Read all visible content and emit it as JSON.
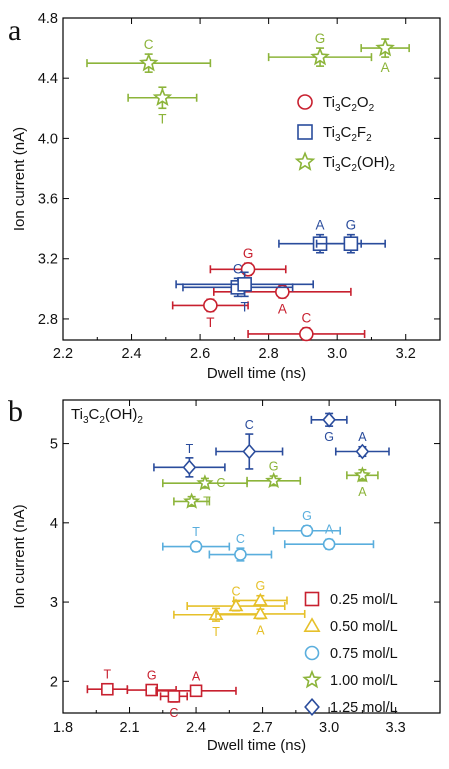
{
  "chart_data": [
    {
      "panel": "a",
      "type": "scatter",
      "xlabel": "Dwell time (ns)",
      "ylabel": "Ion current (nA)",
      "xlim": [
        2.2,
        3.3
      ],
      "ylim": [
        2.66,
        4.8
      ],
      "xticks": [
        "2.2",
        "2.4",
        "2.6",
        "2.8",
        "3.0",
        "3.2"
      ],
      "yticks": [
        "2.8",
        "3.2",
        "3.6",
        "4.0",
        "4.4",
        "4.8"
      ],
      "legend": {
        "placement": "right",
        "entries": [
          {
            "marker": "circle",
            "color": "#c8202f",
            "parts": [
              [
                "Ti",
                ""
              ],
              [
                "3",
                "sub"
              ],
              [
                "C",
                ""
              ],
              [
                "2",
                "sub"
              ],
              [
                "O",
                ""
              ],
              [
                "2",
                "sub"
              ]
            ]
          },
          {
            "marker": "square",
            "color": "#2a4c9c",
            "parts": [
              [
                "Ti",
                ""
              ],
              [
                "3",
                "sub"
              ],
              [
                "C",
                ""
              ],
              [
                "2",
                "sub"
              ],
              [
                "F",
                ""
              ],
              [
                "2",
                "sub"
              ]
            ]
          },
          {
            "marker": "star",
            "color": "#8cb43a",
            "parts": [
              [
                "Ti",
                ""
              ],
              [
                "3",
                "sub"
              ],
              [
                "C",
                ""
              ],
              [
                "2",
                "sub"
              ],
              [
                "(OH)",
                ""
              ],
              [
                "2",
                "sub"
              ]
            ]
          }
        ]
      },
      "series": [
        {
          "marker": "circle",
          "color": "#c8202f",
          "points": [
            {
              "label": "G",
              "lpos": "above",
              "x": 2.74,
              "y": 3.13,
              "xerr": 0.11,
              "yerr": 0.04
            },
            {
              "label": "T",
              "lpos": "below",
              "x": 2.63,
              "y": 2.89,
              "xerr": 0.11,
              "yerr": 0.04
            },
            {
              "label": "A",
              "lpos": "below",
              "x": 2.84,
              "y": 2.98,
              "xerr": 0.2,
              "yerr": 0.04
            },
            {
              "label": "C",
              "lpos": "above",
              "x": 2.91,
              "y": 2.7,
              "xerr": 0.17,
              "yerr": 0.04
            }
          ]
        },
        {
          "marker": "square",
          "color": "#2a4c9c",
          "points": [
            {
              "label": "C",
              "lpos": "above",
              "x": 2.71,
              "y": 3.01,
              "xerr": 0.16,
              "yerr": 0.06
            },
            {
              "label": "T",
              "lpos": "below",
              "x": 2.73,
              "y": 3.03,
              "xerr": 0.2,
              "yerr": 0.08
            },
            {
              "label": "A",
              "lpos": "above",
              "x": 2.95,
              "y": 3.3,
              "xerr": 0.12,
              "yerr": 0.06
            },
            {
              "label": "G",
              "lpos": "above",
              "x": 3.04,
              "y": 3.3,
              "xerr": 0.1,
              "yerr": 0.06
            }
          ]
        },
        {
          "marker": "star",
          "color": "#8cb43a",
          "points": [
            {
              "label": "C",
              "lpos": "above",
              "x": 2.45,
              "y": 4.5,
              "xerr": 0.18,
              "yerr": 0.06
            },
            {
              "label": "T",
              "lpos": "below",
              "x": 2.49,
              "y": 4.27,
              "xerr": 0.1,
              "yerr": 0.07
            },
            {
              "label": "G",
              "lpos": "above",
              "x": 2.95,
              "y": 4.54,
              "xerr": 0.15,
              "yerr": 0.06
            },
            {
              "label": "A",
              "lpos": "below",
              "x": 3.14,
              "y": 4.6,
              "xerr": 0.07,
              "yerr": 0.06
            }
          ]
        }
      ]
    },
    {
      "panel": "b",
      "type": "scatter",
      "xlabel": "Dwell time (ns)",
      "ylabel": "Ion current (nA)",
      "xlim": [
        1.8,
        3.5
      ],
      "ylim": [
        1.6,
        5.55
      ],
      "xticks": [
        "1.8",
        "2.1",
        "2.4",
        "2.7",
        "3.0",
        "3.3"
      ],
      "yticks": [
        "2",
        "3",
        "4",
        "5"
      ],
      "title_parts": [
        [
          "Ti",
          ""
        ],
        [
          "3",
          "sub"
        ],
        [
          "C",
          ""
        ],
        [
          "2",
          "sub"
        ],
        [
          "(OH)",
          ""
        ],
        [
          "2",
          "sub"
        ]
      ],
      "legend": {
        "placement": "lower-right",
        "entries": [
          {
            "marker": "square",
            "color": "#c8202f",
            "text": "0.25 mol/L"
          },
          {
            "marker": "triangle",
            "color": "#e6c02a",
            "text": "0.50 mol/L"
          },
          {
            "marker": "circle",
            "color": "#5aaedd",
            "text": "0.75 mol/L"
          },
          {
            "marker": "star",
            "color": "#8cb43a",
            "text": "1.00 mol/L"
          },
          {
            "marker": "diamond",
            "color": "#2a4c9c",
            "text": "1.25 mol/L"
          }
        ]
      },
      "series": [
        {
          "name": "0.25 mol/L",
          "marker": "square",
          "color": "#c8202f",
          "points": [
            {
              "label": "T",
              "lpos": "above",
              "x": 2.0,
              "y": 1.9,
              "xerr": 0.09,
              "yerr": 0.05
            },
            {
              "label": "G",
              "lpos": "above",
              "x": 2.2,
              "y": 1.89,
              "xerr": 0.11,
              "yerr": 0.05
            },
            {
              "label": "C",
              "lpos": "below",
              "x": 2.3,
              "y": 1.81,
              "xerr": 0.06,
              "yerr": 0.07
            },
            {
              "label": "A",
              "lpos": "above",
              "x": 2.4,
              "y": 1.88,
              "xerr": 0.18,
              "yerr": 0.05
            }
          ]
        },
        {
          "name": "0.50 mol/L",
          "marker": "triangle",
          "color": "#e6c02a",
          "points": [
            {
              "label": "T",
              "lpos": "below",
              "x": 2.49,
              "y": 2.84,
              "xerr": 0.19,
              "yerr": 0.08
            },
            {
              "label": "C",
              "lpos": "above",
              "x": 2.58,
              "y": 2.95,
              "xerr": 0.22,
              "yerr": 0.06
            },
            {
              "label": "G",
              "lpos": "above",
              "x": 2.69,
              "y": 3.02,
              "xerr": 0.12,
              "yerr": 0.06
            },
            {
              "label": "A",
              "lpos": "below",
              "x": 2.69,
              "y": 2.85,
              "xerr": 0.2,
              "yerr": 0.06
            }
          ]
        },
        {
          "name": "0.75 mol/L",
          "marker": "circle",
          "color": "#5aaedd",
          "points": [
            {
              "label": "T",
              "lpos": "above",
              "x": 2.4,
              "y": 3.7,
              "xerr": 0.15,
              "yerr": 0.06
            },
            {
              "label": "C",
              "lpos": "above",
              "x": 2.6,
              "y": 3.6,
              "xerr": 0.14,
              "yerr": 0.08
            },
            {
              "label": "G",
              "lpos": "above",
              "x": 2.9,
              "y": 3.9,
              "xerr": 0.15,
              "yerr": 0.06
            },
            {
              "label": "A",
              "lpos": "above",
              "x": 3.0,
              "y": 3.73,
              "xerr": 0.2,
              "yerr": 0.06
            }
          ]
        },
        {
          "name": "1.00 mol/L",
          "marker": "star",
          "color": "#8cb43a",
          "points": [
            {
              "label": "C",
              "lpos": "right",
              "x": 2.44,
              "y": 4.5,
              "xerr": 0.19,
              "yerr": 0.06
            },
            {
              "label": "T",
              "lpos": "right",
              "x": 2.38,
              "y": 4.27,
              "xerr": 0.08,
              "yerr": 0.06
            },
            {
              "label": "G",
              "lpos": "above",
              "x": 2.75,
              "y": 4.53,
              "xerr": 0.12,
              "yerr": 0.06
            },
            {
              "label": "A",
              "lpos": "below",
              "x": 3.15,
              "y": 4.6,
              "xerr": 0.07,
              "yerr": 0.07
            }
          ]
        },
        {
          "name": "1.25 mol/L",
          "marker": "diamond",
          "color": "#2a4c9c",
          "points": [
            {
              "label": "T",
              "lpos": "above",
              "x": 2.37,
              "y": 4.7,
              "xerr": 0.16,
              "yerr": 0.12
            },
            {
              "label": "C",
              "lpos": "above",
              "x": 2.64,
              "y": 4.9,
              "xerr": 0.15,
              "yerr": 0.22
            },
            {
              "label": "G",
              "lpos": "below",
              "x": 3.0,
              "y": 5.3,
              "xerr": 0.08,
              "yerr": 0.08
            },
            {
              "label": "A",
              "lpos": "above",
              "x": 3.15,
              "y": 4.9,
              "xerr": 0.12,
              "yerr": 0.06
            }
          ]
        }
      ]
    }
  ]
}
